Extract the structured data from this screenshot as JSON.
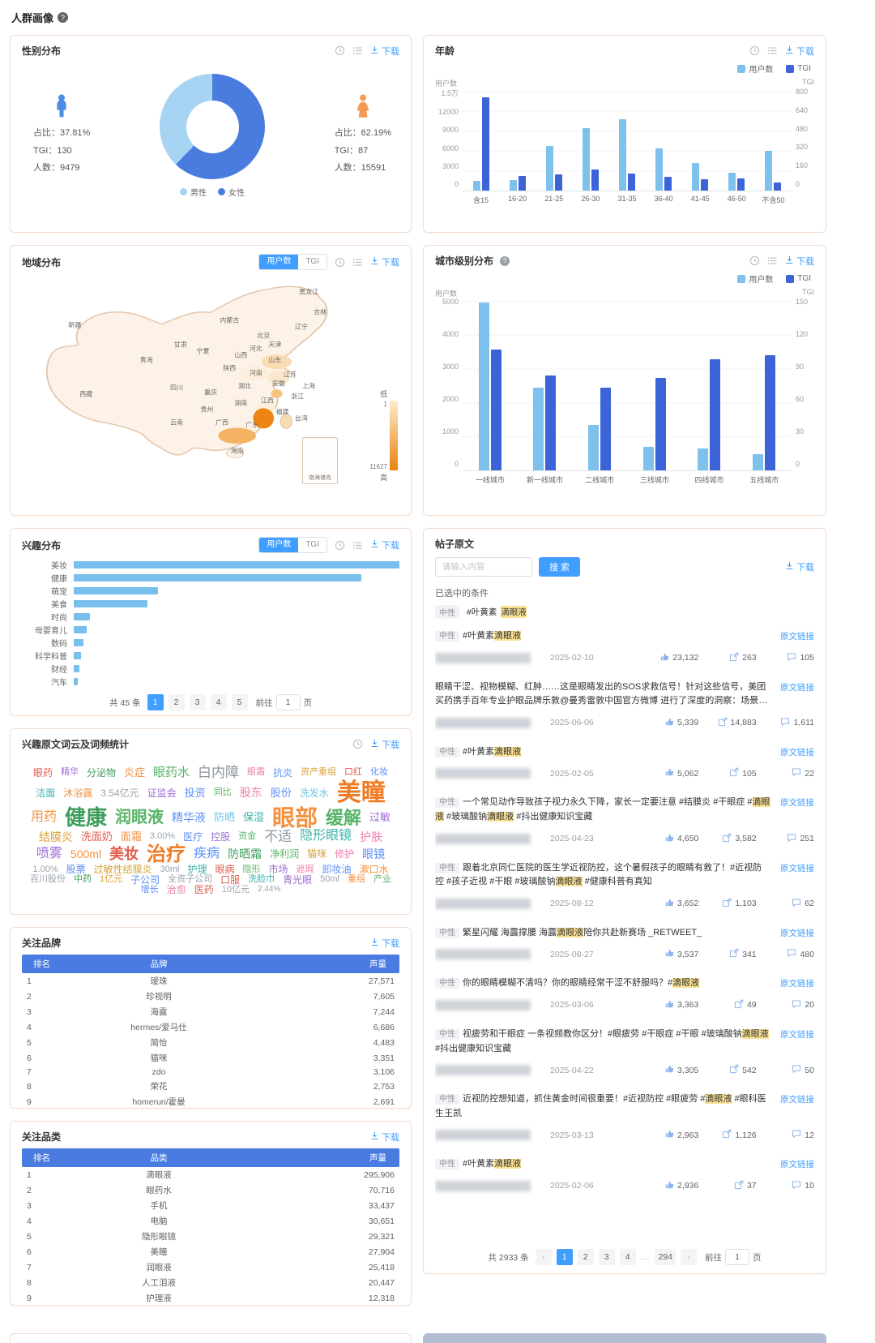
{
  "page": {
    "title": "人群画像"
  },
  "ui": {
    "download": "下载",
    "users_label": "用户数",
    "tgi_label": "TGI",
    "goto": "前往",
    "page_unit": "页",
    "ellipsis": "...",
    "prev": "‹",
    "next": "›",
    "colors": {
      "users_bar": "#7ec1ed",
      "tgi_bar": "#3d63d8",
      "male_slice": "#a6d4f2",
      "female_slice": "#4a7bdf",
      "interest_bar": "#79bfee",
      "accent": "#409eff",
      "table_header": "#4a7be0",
      "map_low": "#fdeccb",
      "map_high": "#e8820e"
    }
  },
  "gender": {
    "title": "性别分布",
    "legend": [
      "男性",
      "女性"
    ],
    "male": {
      "ratio": "占比：37.81%",
      "tgi": "TGI：130",
      "count": "人数：9479"
    },
    "female": {
      "ratio": "占比：62.19%",
      "tgi": "TGI：87",
      "count": "人数：15591"
    },
    "chart_data": {
      "type": "pie",
      "labels": [
        "男性",
        "女性"
      ],
      "values": [
        37.81,
        62.19
      ]
    }
  },
  "age": {
    "title": "年龄",
    "chart_data": {
      "type": "bar",
      "categories": [
        "含15",
        "16-20",
        "21-25",
        "26-30",
        "31-35",
        "36-40",
        "41-45",
        "46-50",
        "不含50"
      ],
      "series": [
        {
          "name": "用户数",
          "axis": "left",
          "values": [
            1500,
            1550,
            6700,
            9400,
            10700,
            6300,
            4200,
            2700,
            6000
          ]
        },
        {
          "name": "TGI",
          "axis": "right",
          "values": [
            750,
            115,
            130,
            170,
            135,
            108,
            88,
            100,
            68
          ]
        }
      ],
      "y_left": {
        "ticks": [
          "1.5万",
          "12000",
          "9000",
          "6000",
          "3000",
          "0"
        ],
        "max": 15000
      },
      "y_right": {
        "ticks": [
          "800",
          "640",
          "480",
          "320",
          "160",
          "0"
        ],
        "max": 800
      }
    }
  },
  "region": {
    "title": "地域分布",
    "legend": {
      "low": "低",
      "high": "高",
      "min": "1",
      "max": "11627"
    },
    "inset_label": "南海诸岛",
    "provinces": [
      [
        "黑龙江",
        76,
        8
      ],
      [
        "吉林",
        79,
        17
      ],
      [
        "辽宁",
        74,
        24
      ],
      [
        "内蒙古",
        55,
        21
      ],
      [
        "新疆",
        14,
        23
      ],
      [
        "北京",
        64,
        28
      ],
      [
        "天津",
        67,
        32
      ],
      [
        "河北",
        62,
        34
      ],
      [
        "山西",
        58,
        37
      ],
      [
        "山东",
        67,
        39
      ],
      [
        "宁夏",
        48,
        35
      ],
      [
        "青海",
        33,
        39
      ],
      [
        "甘肃",
        42,
        32
      ],
      [
        "陕西",
        55,
        43
      ],
      [
        "河南",
        62,
        45
      ],
      [
        "江苏",
        71,
        46
      ],
      [
        "安徽",
        68,
        50
      ],
      [
        "上海",
        76,
        51
      ],
      [
        "西藏",
        17,
        55
      ],
      [
        "四川",
        41,
        52
      ],
      [
        "重庆",
        50,
        54
      ],
      [
        "湖北",
        59,
        51
      ],
      [
        "浙江",
        73,
        56
      ],
      [
        "湖南",
        58,
        59
      ],
      [
        "江西",
        65,
        58
      ],
      [
        "贵州",
        49,
        62
      ],
      [
        "福建",
        69,
        63
      ],
      [
        "云南",
        41,
        68
      ],
      [
        "广西",
        53,
        68
      ],
      [
        "广东",
        61,
        69
      ],
      [
        "台湾",
        74,
        66
      ],
      [
        "海南",
        57,
        81
      ]
    ]
  },
  "city": {
    "title": "城市级别分布",
    "chart_data": {
      "type": "bar",
      "categories": [
        "一线城市",
        "新一线城市",
        "二线城市",
        "三线城市",
        "四线城市",
        "五线城市"
      ],
      "series": [
        {
          "name": "用户数",
          "axis": "left",
          "values": [
            4950,
            2450,
            1350,
            700,
            650,
            480
          ]
        },
        {
          "name": "TGI",
          "axis": "right",
          "values": [
            107,
            84,
            73,
            82,
            98,
            102
          ]
        }
      ],
      "y_left": {
        "ticks": [
          "5000",
          "4000",
          "3000",
          "2000",
          "1000",
          "0"
        ],
        "max": 5000
      },
      "y_right": {
        "ticks": [
          "150",
          "120",
          "90",
          "60",
          "30",
          "0"
        ],
        "max": 150
      }
    }
  },
  "interest": {
    "title": "兴趣分布",
    "chart_data": {
      "type": "bar",
      "orientation": "horizontal",
      "categories": [
        "美妆",
        "健康",
        "萌宠",
        "美食",
        "时尚",
        "母婴育儿",
        "数码",
        "科学科普",
        "财经",
        "汽车"
      ],
      "values": [
        2970,
        2620,
        770,
        670,
        150,
        120,
        90,
        70,
        50,
        40
      ],
      "max": 2970
    },
    "pagination": {
      "total": "共 45 条",
      "pages": [
        "1",
        "2",
        "3",
        "4",
        "5"
      ],
      "active": "1",
      "goto_value": "1"
    }
  },
  "wordcloud": {
    "title": "兴趣原文词云及词频统计",
    "words": [
      [
        "眼药",
        12,
        "#e15b4e"
      ],
      [
        "精华",
        11,
        "#9b6fd0"
      ],
      [
        "分泌物",
        12,
        "#3e9e5b"
      ],
      [
        "炎症",
        13,
        "#f4913e"
      ],
      [
        "眼药水",
        15,
        "#58b368"
      ],
      [
        "白内障",
        17,
        "#8b95a1"
      ],
      [
        "眼霜",
        11,
        "#ef7fae"
      ],
      [
        "抗炎",
        12,
        "#5b8ff9"
      ],
      [
        "资产重组",
        11,
        "#d8a339"
      ],
      [
        "口红",
        11,
        "#e15b4e"
      ],
      [
        "化妆",
        11,
        "#5b8ff9"
      ],
      [
        "洁面",
        12,
        "#3bb3a9"
      ],
      [
        "沐浴露",
        12,
        "#f4913e"
      ],
      [
        "3.54亿元",
        12,
        "#9aa3ad"
      ],
      [
        "证监会",
        12,
        "#9b6fd0"
      ],
      [
        "投资",
        13,
        "#5b8ff9"
      ],
      [
        "同比",
        11,
        "#58b368"
      ],
      [
        "股东",
        14,
        "#ef7fae"
      ],
      [
        "股份",
        13,
        "#5b8ff9"
      ],
      [
        "洗发水",
        12,
        "#6ec6e8"
      ],
      [
        "美瞳",
        30,
        "#ef7c24"
      ],
      [
        "用药",
        16,
        "#f4913e"
      ],
      [
        "健康",
        26,
        "#3e9e5b"
      ],
      [
        "润眼液",
        20,
        "#58b368"
      ],
      [
        "精华液",
        14,
        "#5b8ff9"
      ],
      [
        "防晒",
        13,
        "#6ec6e8"
      ],
      [
        "保湿",
        13,
        "#3bb3a9"
      ],
      [
        "眼部",
        28,
        "#f4913e"
      ],
      [
        "缓解",
        22,
        "#58b368"
      ],
      [
        "过敏",
        13,
        "#9b6fd0"
      ],
      [
        "结膜炎",
        14,
        "#d8a339"
      ],
      [
        "洗面奶",
        13,
        "#e15b4e"
      ],
      [
        "面霜",
        13,
        "#f4913e"
      ],
      [
        "3.00%",
        11,
        "#9aa3ad"
      ],
      [
        "医疗",
        12,
        "#5b8ff9"
      ],
      [
        "控股",
        12,
        "#9b6fd0"
      ],
      [
        "资金",
        11,
        "#58b368"
      ],
      [
        "不适",
        17,
        "#8b95a1"
      ],
      [
        "隐形眼镜",
        16,
        "#3bb3a9"
      ],
      [
        "护肤",
        14,
        "#ef7fae"
      ],
      [
        "喷雾",
        16,
        "#9b6fd0"
      ],
      [
        "500ml",
        14,
        "#f4913e"
      ],
      [
        "美妆",
        18,
        "#e15b4e"
      ],
      [
        "治疗",
        24,
        "#ef7c24"
      ],
      [
        "疾病",
        16,
        "#5b8ff9"
      ],
      [
        "防晒霜",
        14,
        "#3e9e5b"
      ],
      [
        "净利润",
        12,
        "#58b368"
      ],
      [
        "猫咪",
        12,
        "#d8a339"
      ],
      [
        "修护",
        12,
        "#ef7fae"
      ],
      [
        "眼镜",
        14,
        "#5b8ff9"
      ],
      [
        "1.00%",
        11,
        "#9aa3ad"
      ],
      [
        "股票",
        12,
        "#5b8ff9"
      ],
      [
        "过敏性结膜炎",
        12,
        "#d8a339"
      ],
      [
        "30ml",
        11,
        "#9aa3ad"
      ],
      [
        "护理",
        12,
        "#3bb3a9"
      ],
      [
        "眼病",
        12,
        "#e15b4e"
      ],
      [
        "隐形",
        11,
        "#58b368"
      ],
      [
        "市场",
        12,
        "#9b6fd0"
      ],
      [
        "遮瑕",
        11,
        "#ef7fae"
      ],
      [
        "卸妆油",
        12,
        "#5b8ff9"
      ],
      [
        "漱口水",
        12,
        "#f4913e"
      ],
      [
        "百川股份",
        11,
        "#9aa3ad"
      ],
      [
        "中药",
        11,
        "#3e9e5b"
      ],
      [
        "1亿元",
        11,
        "#d8a339"
      ],
      [
        "子公司",
        12,
        "#5b8ff9"
      ],
      [
        "全资子公司",
        11,
        "#9aa3ad"
      ],
      [
        "口服",
        12,
        "#e15b4e"
      ],
      [
        "洗脸巾",
        11,
        "#3bb3a9"
      ],
      [
        "青光眼",
        12,
        "#9b6fd0"
      ],
      [
        "50ml",
        11,
        "#9aa3ad"
      ],
      [
        "重组",
        11,
        "#f4913e"
      ],
      [
        "产业",
        11,
        "#58b368"
      ],
      [
        "增长",
        11,
        "#5b8ff9"
      ],
      [
        "治愈",
        12,
        "#ef7fae"
      ],
      [
        "医药",
        12,
        "#e15b4e"
      ],
      [
        "10亿元",
        11,
        "#9aa3ad"
      ],
      [
        "2.44%",
        10,
        "#9aa3ad"
      ]
    ]
  },
  "brands": {
    "title": "关注品牌",
    "columns": [
      "排名",
      "品牌",
      "声量"
    ],
    "rows": [
      [
        "1",
        "瑷珠",
        "27,571"
      ],
      [
        "2",
        "珍视明",
        "7,605"
      ],
      [
        "3",
        "海露",
        "7,244"
      ],
      [
        "4",
        "hermes/爱马仕",
        "6,686"
      ],
      [
        "5",
        "简怡",
        "4,483"
      ],
      [
        "6",
        "猫咪",
        "3,351"
      ],
      [
        "7",
        "zdo",
        "3,106"
      ],
      [
        "8",
        "荣花",
        "2,753"
      ],
      [
        "9",
        "homerun/霍曼",
        "2,691"
      ],
      [
        "10",
        "沐森堂",
        "2,277"
      ]
    ],
    "pagination": {
      "total": "共 1843 条",
      "per_page": "10条/页",
      "pages": [
        "1",
        "2",
        "3",
        "4"
      ],
      "last": "185",
      "active": "1",
      "goto_value": "1"
    }
  },
  "categories": {
    "title": "关注品类",
    "columns": [
      "排名",
      "品类",
      "声量"
    ],
    "rows": [
      [
        "1",
        "滴眼液",
        "295,906"
      ],
      [
        "2",
        "眼药水",
        "70,716"
      ],
      [
        "3",
        "手机",
        "33,437"
      ],
      [
        "4",
        "电脑",
        "30,651"
      ],
      [
        "5",
        "隐形眼镜",
        "29,321"
      ],
      [
        "6",
        "美瞳",
        "27,904"
      ],
      [
        "7",
        "润眼液",
        "25,418"
      ],
      [
        "8",
        "人工泪液",
        "20,447"
      ],
      [
        "9",
        "护理液",
        "12,318"
      ],
      [
        "10",
        "沐浴露",
        "10,885"
      ]
    ],
    "pagination": {
      "total": "共 1879 条",
      "per_page": "10条/页",
      "pages": [
        "1",
        "2",
        "3",
        "4"
      ],
      "last": "188",
      "active": "1",
      "goto_value": "1"
    }
  },
  "posts": {
    "title": "帖子原文",
    "search_placeholder": "请输入内容",
    "search_button": "搜 索",
    "selected_label": "已选中的条件",
    "link_label": "原文链接",
    "filter_chip": {
      "tag": "中性",
      "seg": [
        [
          "#叶黄素",
          0
        ],
        [
          "滴眼液",
          1
        ]
      ]
    },
    "items": [
      {
        "tag": "中性",
        "seg": [
          [
            "#叶黄素",
            0
          ],
          [
            "滴眼液",
            1
          ]
        ],
        "date": "2025-02-10",
        "likes": "23,132",
        "reposts": "263",
        "comments": "105"
      },
      {
        "tag": "",
        "seg": [
          [
            "眼睛干涩、视物模糊、红肿……这是眼睛发出的SOS求救信号！针对这些信号，美团买药携手百年专业护眼品牌乐敦@曼秀雷敦中国官方微博 进行了深度的洞察：场景1：学生工作党是抗疲劳",
            0
          ],
          [
            "滴眼液",
            1
          ],
          [
            "…",
            0
          ]
        ],
        "date": "2025-06-06",
        "likes": "5,339",
        "reposts": "14,883",
        "comments": "1,611"
      },
      {
        "tag": "中性",
        "seg": [
          [
            "#叶黄素",
            0
          ],
          [
            "滴眼液",
            1
          ]
        ],
        "date": "2025-02-05",
        "likes": "5,062",
        "reposts": "105",
        "comments": "22"
      },
      {
        "tag": "中性",
        "seg": [
          [
            "一个常见动作导致孩子视力永久下降，家长一定要注意 #结膜炎 #干眼症 #",
            0
          ],
          [
            "滴眼液",
            1
          ],
          [
            " #玻璃酸钠",
            0
          ],
          [
            "滴眼液",
            1
          ],
          [
            " #抖出健康知识宝藏",
            0
          ]
        ],
        "date": "2025-04-23",
        "likes": "4,650",
        "reposts": "3,582",
        "comments": "251"
      },
      {
        "tag": "中性",
        "seg": [
          [
            "跟着北京同仁医院的医生学近视防控，这个暑假孩子的眼睛有救了！#近视防控 #孩子近视 #干眼 #玻璃酸钠",
            0
          ],
          [
            "滴眼液",
            1
          ],
          [
            " #健康科普有真知",
            0
          ]
        ],
        "date": "2025-08-12",
        "likes": "3,652",
        "reposts": "1,103",
        "comments": "62"
      },
      {
        "tag": "中性",
        "seg": [
          [
            "繁星闪耀 海露撑腰 海露",
            0
          ],
          [
            "滴眼液",
            1
          ],
          [
            "陪你共赴新赛场 _RETWEET_",
            0
          ]
        ],
        "date": "2025-08-27",
        "likes": "3,537",
        "reposts": "341",
        "comments": "480"
      },
      {
        "tag": "中性",
        "seg": [
          [
            "你的眼睛模糊不清吗？你的眼睛经常干涩不舒服吗？#",
            0
          ],
          [
            "滴眼液",
            1
          ]
        ],
        "date": "2025-03-06",
        "likes": "3,363",
        "reposts": "49",
        "comments": "20"
      },
      {
        "tag": "中性",
        "seg": [
          [
            "视疲劳和干眼症 一条视频教你区分！#眼疲劳 #干眼症 #干眼 #玻璃酸钠",
            0
          ],
          [
            "滴眼液",
            1
          ],
          [
            " #抖出健康知识宝藏",
            0
          ]
        ],
        "date": "2025-04-22",
        "likes": "3,305",
        "reposts": "542",
        "comments": "50"
      },
      {
        "tag": "中性",
        "seg": [
          [
            "近视防控想知道，抓住黄金时间很重要！#近视防控 #眼疲劳 #",
            0
          ],
          [
            "滴眼液",
            1
          ],
          [
            " #眼科医生王凯",
            0
          ]
        ],
        "date": "2025-03-13",
        "likes": "2,963",
        "reposts": "1,126",
        "comments": "12"
      },
      {
        "tag": "中性",
        "seg": [
          [
            "#叶黄素",
            0
          ],
          [
            "滴眼液",
            1
          ]
        ],
        "date": "2025-02-06",
        "likes": "2,936",
        "reposts": "37",
        "comments": "10"
      }
    ],
    "pagination": {
      "total": "共 2933 条",
      "pages": [
        "1",
        "2",
        "3",
        "4"
      ],
      "last": "294",
      "active": "1",
      "goto_value": "1"
    }
  }
}
